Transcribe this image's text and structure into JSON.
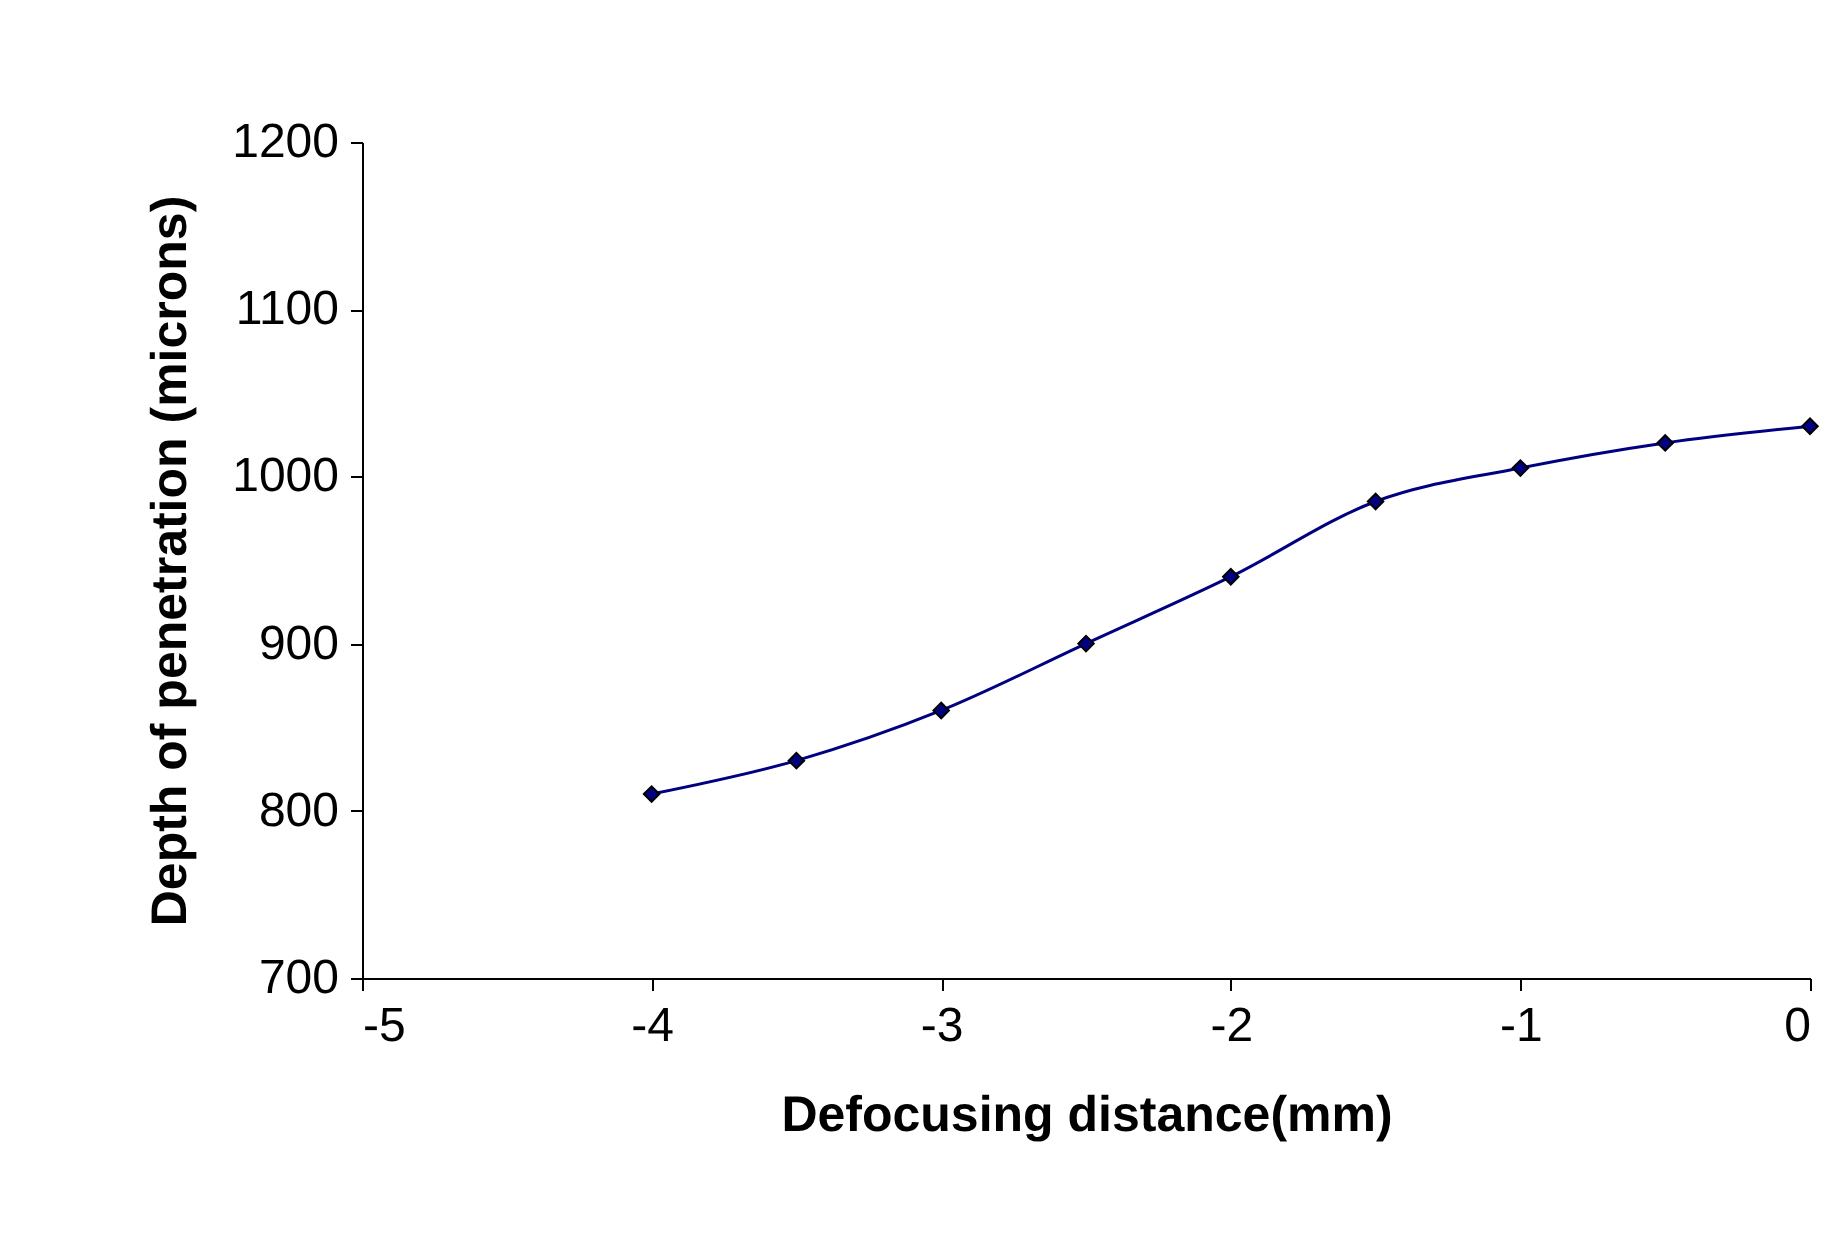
{
  "chart_data": {
    "type": "line",
    "xlabel": "Defocusing distance(mm)",
    "ylabel": "Depth of penetration (microns)",
    "x": [
      -4,
      -3.5,
      -3,
      -2.5,
      -2,
      -1.5,
      -1,
      -0.5,
      0
    ],
    "series": [
      {
        "color": "#000080",
        "values": [
          810,
          830,
          860,
          900,
          940,
          985,
          1005,
          1020,
          1030
        ]
      }
    ],
    "xlim": [
      -5,
      0
    ],
    "xticks": [
      -5,
      -4,
      -3,
      -2,
      -1,
      0
    ],
    "ylim": [
      700,
      1200
    ],
    "yticks": [
      700,
      800,
      900,
      1000,
      1100,
      1200
    ],
    "grid": false,
    "marker": "diamond",
    "line_style": "solid"
  }
}
